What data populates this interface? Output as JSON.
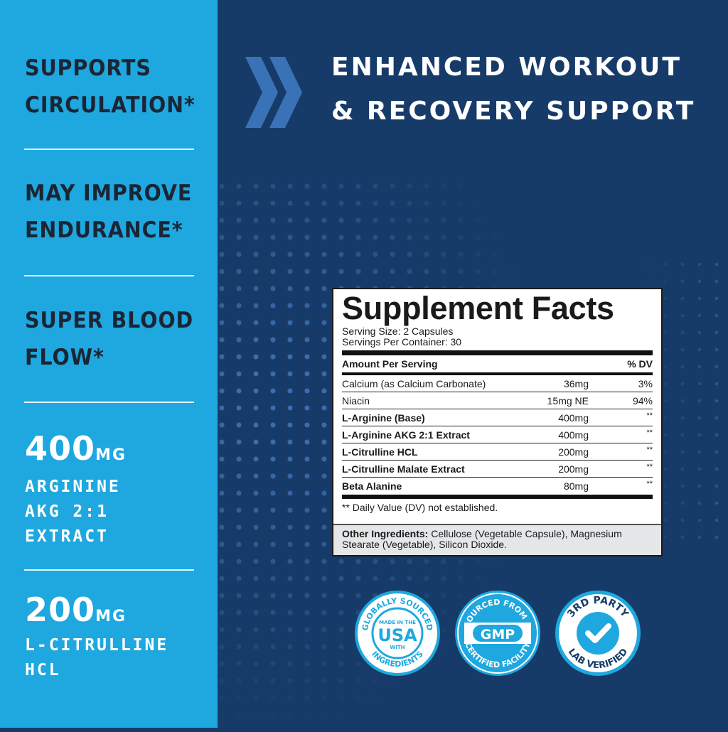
{
  "colors": {
    "left_panel": "#1ea8df",
    "right_panel": "#173b69",
    "accent_light": "#1ea8df",
    "chevron": "#3a72b8"
  },
  "left": {
    "claims": [
      {
        "line1": "SUPPORTS",
        "line2": "CIRCULATION*"
      },
      {
        "line1": "MAY IMPROVE",
        "line2": "ENDURANCE*"
      },
      {
        "line1": "SUPER BLOOD",
        "line2": "FLOW*"
      }
    ],
    "doses": [
      {
        "amount": "400",
        "unit": "MG",
        "lines": [
          "ARGININE",
          "AKG 2:1",
          "EXTRACT"
        ]
      },
      {
        "amount": "200",
        "unit": "MG",
        "lines": [
          "L-CITRULLINE",
          "HCL"
        ]
      }
    ]
  },
  "headline": {
    "line1": "ENHANCED WORKOUT",
    "line2": "& RECOVERY SUPPORT",
    "icon": "double-chevron-right-icon"
  },
  "facts": {
    "title": "Supplement Facts",
    "serving_size": "Serving Size: 2 Capsules",
    "servings_per_container": "Servings Per Container: 30",
    "header_amount": "Amount Per Serving",
    "header_dv": "% DV",
    "rows": [
      {
        "name": "Calcium (as Calcium Carbonate)",
        "amount": "36mg",
        "dv": "3%"
      },
      {
        "name": "Niacin",
        "amount": "15mg NE",
        "dv": "94%"
      },
      {
        "name": "L-Arginine (Base)",
        "amount": "400mg",
        "dv": "**"
      },
      {
        "name": "L-Arginine AKG 2:1 Extract",
        "amount": "400mg",
        "dv": "**"
      },
      {
        "name": "L-Citrulline HCL",
        "amount": "200mg",
        "dv": "**"
      },
      {
        "name": "L-Citrulline Malate Extract",
        "amount": "200mg",
        "dv": "**"
      },
      {
        "name": "Beta Alanine",
        "amount": "80mg",
        "dv": "**"
      }
    ],
    "footnote": "** Daily Value (DV) not established.",
    "other_label": "Other Ingredients:",
    "other_text": " Cellulose (Vegetable Capsule), Magnesium Stearate (Vegetable), Silicon Dioxide."
  },
  "badges": [
    {
      "top": "GLOBALLY SOURCED",
      "center_small": "MADE IN THE",
      "center": "USA",
      "center_small2": "WITH",
      "bottom": "INGREDIENTS"
    },
    {
      "top": "SOURCED FROM A",
      "center": "GMP",
      "bottom": "CERTIFIED FACILITY"
    },
    {
      "top": "3RD PARTY",
      "bottom": "LAB VERIFIED",
      "icon": "checkmark-icon"
    }
  ]
}
